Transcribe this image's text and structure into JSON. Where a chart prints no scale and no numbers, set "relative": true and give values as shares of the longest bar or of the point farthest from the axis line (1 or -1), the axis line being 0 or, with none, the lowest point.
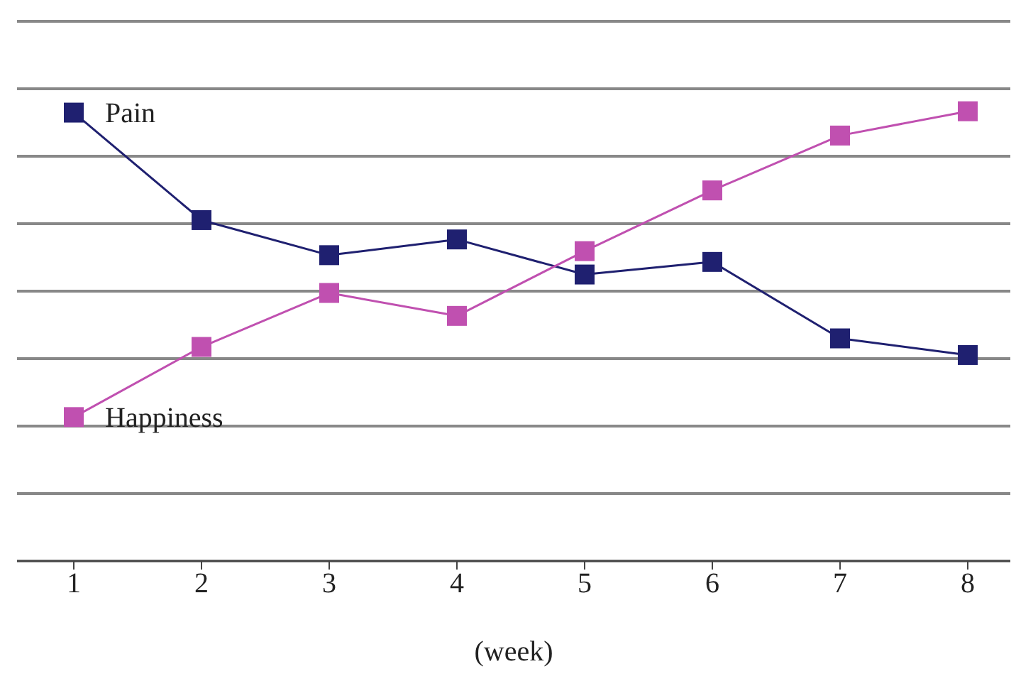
{
  "chart_data": {
    "type": "line",
    "xlabel": "(week)",
    "categories": [
      "1",
      "2",
      "3",
      "4",
      "5",
      "6",
      "7",
      "8"
    ],
    "relative": true,
    "grid": "y",
    "legend": false,
    "marker": "square",
    "line_style": "solid",
    "series": [
      {
        "name": "Pain",
        "color": "#1f2070",
        "values": [
          0.997,
          0.758,
          0.68,
          0.715,
          0.637,
          0.665,
          0.495,
          0.458
        ]
      },
      {
        "name": "Happiness",
        "color": "#c050b0",
        "values": [
          0.32,
          0.476,
          0.596,
          0.545,
          0.689,
          0.824,
          0.946,
          1
        ]
      }
    ]
  }
}
